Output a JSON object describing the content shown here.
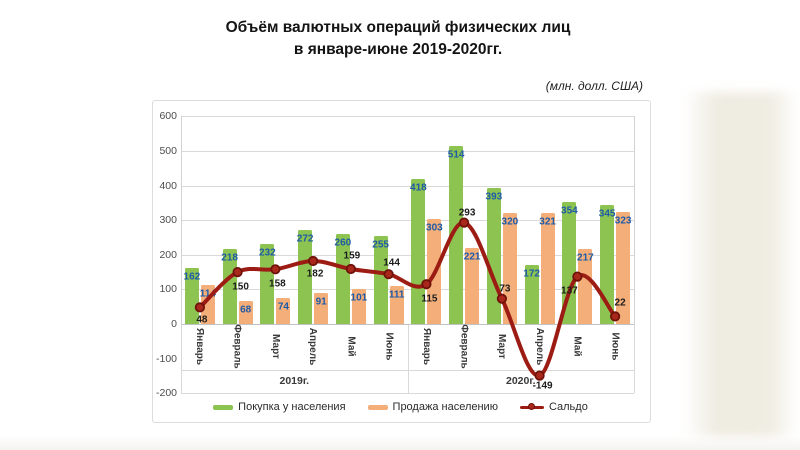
{
  "title": {
    "line1": "Объём валютных операций физических лиц",
    "line2": "в январе-июне 2019-2020гг."
  },
  "chart_data": {
    "type": "combo-bar-line",
    "title": "Объём валютных операций физических лиц в январе-июне 2019-2020гг.",
    "units": "(млн. долл. США)",
    "x_groups": [
      {
        "label": "2019г.",
        "categories": [
          "Январь",
          "Февраль",
          "Март",
          "Апрель",
          "Май",
          "Июнь"
        ]
      },
      {
        "label": "2020г.",
        "categories": [
          "Январь",
          "Февраль",
          "Март",
          "Апрель",
          "Май",
          "Июнь"
        ]
      }
    ],
    "series": [
      {
        "name": "Покупка у населения",
        "kind": "bar",
        "color": "#8cc351",
        "label_color": "#1d5aa8",
        "values": [
          162,
          218,
          232,
          272,
          260,
          255,
          418,
          514,
          393,
          172,
          354,
          345
        ]
      },
      {
        "name": "Продажа населению",
        "kind": "bar",
        "color": "#f3ae7a",
        "label_color": "#1d5aa8",
        "values": [
          114,
          68,
          74,
          91,
          101,
          111,
          303,
          221,
          320,
          321,
          217,
          323
        ]
      },
      {
        "name": "Сальдо",
        "kind": "line",
        "color": "#9c1c14",
        "marker_fill": "#a8291c",
        "marker_border": "#701109",
        "label_color": "#1c1c1c",
        "values": [
          48,
          150,
          158,
          182,
          159,
          144,
          115,
          293,
          73,
          -149,
          137,
          22
        ]
      }
    ],
    "y_axis": {
      "min": -200,
      "max": 600,
      "step": 100,
      "tick_labels": [
        "600",
        "500",
        "400",
        "300",
        "200",
        "100",
        "0",
        "-100",
        "-200"
      ]
    },
    "grid": true,
    "legend_position": "bottom"
  }
}
